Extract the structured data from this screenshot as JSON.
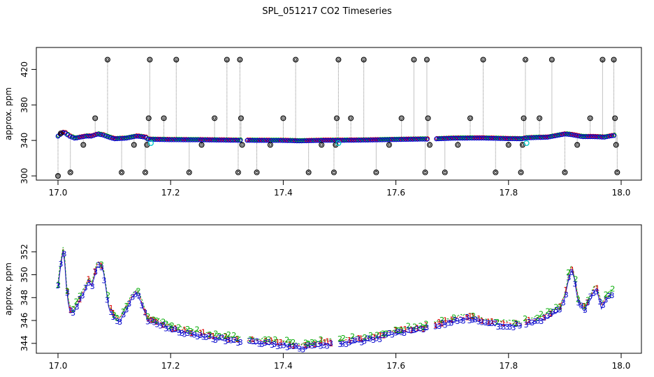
{
  "page_title": "SPL_051217  CO2 Timeseries",
  "colors": {
    "raw": "#000000",
    "flagged": "#00c8c8",
    "series1": "#dd0000",
    "series2": "#00aa00",
    "series3": "#0000cc",
    "connector": "#888888"
  },
  "chart_data": [
    {
      "type": "scatter",
      "title": "SPL_051217  CO2 Timeseries",
      "xlabel": "",
      "ylabel": "approx. ppm",
      "xlim": [
        17.0,
        18.0
      ],
      "ylim": [
        300,
        440
      ],
      "xticks": [
        17.0,
        17.2,
        17.4,
        17.6,
        17.8,
        18.0
      ],
      "xtick_labels": [
        "17.0",
        "17.2",
        "17.4",
        "17.6",
        "17.8",
        "18.0"
      ],
      "yticks": [
        300,
        340,
        380,
        420
      ],
      "ytick_labels": [
        "300",
        "340",
        "380",
        "420"
      ],
      "gaps": [
        [
          17.327,
          17.336
        ],
        [
          17.658,
          17.668
        ]
      ],
      "baseline": {
        "x": [
          17.0,
          17.005,
          17.01,
          17.02,
          17.03,
          17.04,
          17.05,
          17.06,
          17.07,
          17.08,
          17.09,
          17.1,
          17.12,
          17.14,
          17.155,
          17.16,
          17.2,
          17.25,
          17.3,
          17.325,
          17.34,
          17.4,
          17.43,
          17.47,
          17.5,
          17.55,
          17.6,
          17.65,
          17.66,
          17.67,
          17.7,
          17.75,
          17.8,
          17.825,
          17.83,
          17.87,
          17.9,
          17.91,
          17.93,
          17.95,
          17.97,
          17.985
        ],
        "y": [
          348,
          350,
          352,
          348,
          346,
          347,
          348,
          348,
          350,
          349,
          347,
          345.5,
          346,
          348,
          347,
          345,
          344.6,
          344.5,
          344.2,
          344,
          344,
          343.9,
          343.5,
          344,
          344,
          344.3,
          344.8,
          345.2,
          345,
          345.4,
          346,
          346.2,
          345.6,
          345.5,
          346.3,
          347,
          350,
          349.5,
          347.5,
          347.5,
          347,
          348.5
        ]
      },
      "spikes": [
        {
          "x": 17.0,
          "y": 300
        },
        {
          "x": 17.005,
          "y": 348
        },
        {
          "x": 17.022,
          "y": 304
        },
        {
          "x": 17.045,
          "y": 335
        },
        {
          "x": 17.066,
          "y": 365
        },
        {
          "x": 17.088,
          "y": 431
        },
        {
          "x": 17.113,
          "y": 304
        },
        {
          "x": 17.135,
          "y": 335
        },
        {
          "x": 17.155,
          "y": 304
        },
        {
          "x": 17.158,
          "y": 335
        },
        {
          "x": 17.161,
          "y": 365
        },
        {
          "x": 17.163,
          "y": 431
        },
        {
          "x": 17.188,
          "y": 365
        },
        {
          "x": 17.21,
          "y": 431
        },
        {
          "x": 17.233,
          "y": 304
        },
        {
          "x": 17.255,
          "y": 335
        },
        {
          "x": 17.278,
          "y": 365
        },
        {
          "x": 17.3,
          "y": 431
        },
        {
          "x": 17.32,
          "y": 304
        },
        {
          "x": 17.323,
          "y": 431
        },
        {
          "x": 17.325,
          "y": 365
        },
        {
          "x": 17.327,
          "y": 335
        },
        {
          "x": 17.353,
          "y": 304
        },
        {
          "x": 17.377,
          "y": 335
        },
        {
          "x": 17.4,
          "y": 365
        },
        {
          "x": 17.422,
          "y": 431
        },
        {
          "x": 17.445,
          "y": 304
        },
        {
          "x": 17.468,
          "y": 335
        },
        {
          "x": 17.49,
          "y": 304
        },
        {
          "x": 17.493,
          "y": 335
        },
        {
          "x": 17.495,
          "y": 365
        },
        {
          "x": 17.498,
          "y": 431
        },
        {
          "x": 17.52,
          "y": 365
        },
        {
          "x": 17.543,
          "y": 431
        },
        {
          "x": 17.565,
          "y": 304
        },
        {
          "x": 17.588,
          "y": 335
        },
        {
          "x": 17.61,
          "y": 365
        },
        {
          "x": 17.632,
          "y": 431
        },
        {
          "x": 17.652,
          "y": 304
        },
        {
          "x": 17.655,
          "y": 431
        },
        {
          "x": 17.657,
          "y": 365
        },
        {
          "x": 17.66,
          "y": 335
        },
        {
          "x": 17.687,
          "y": 304
        },
        {
          "x": 17.71,
          "y": 335
        },
        {
          "x": 17.732,
          "y": 365
        },
        {
          "x": 17.755,
          "y": 431
        },
        {
          "x": 17.777,
          "y": 304
        },
        {
          "x": 17.8,
          "y": 335
        },
        {
          "x": 17.822,
          "y": 304
        },
        {
          "x": 17.825,
          "y": 335
        },
        {
          "x": 17.827,
          "y": 365
        },
        {
          "x": 17.83,
          "y": 431
        },
        {
          "x": 17.855,
          "y": 365
        },
        {
          "x": 17.877,
          "y": 431
        },
        {
          "x": 17.9,
          "y": 304
        },
        {
          "x": 17.922,
          "y": 335
        },
        {
          "x": 17.945,
          "y": 365
        },
        {
          "x": 17.967,
          "y": 431
        },
        {
          "x": 17.987,
          "y": 431
        },
        {
          "x": 17.989,
          "y": 365
        },
        {
          "x": 17.991,
          "y": 335
        },
        {
          "x": 17.993,
          "y": 304
        }
      ],
      "flagged_points": [
        {
          "x": 17.165,
          "y": 337
        },
        {
          "x": 17.498,
          "y": 337
        },
        {
          "x": 17.832,
          "y": 337
        }
      ]
    },
    {
      "type": "scatter",
      "xlabel": "",
      "ylabel": "approx. ppm",
      "xlim": [
        17.0,
        18.0
      ],
      "ylim": [
        343.5,
        354
      ],
      "xticks": [
        17.0,
        17.2,
        17.4,
        17.6,
        17.8,
        18.0
      ],
      "xtick_labels": [
        "17.0",
        "17.2",
        "17.4",
        "17.6",
        "17.8",
        "18.0"
      ],
      "yticks": [
        344,
        346,
        348,
        350,
        352
      ],
      "ytick_labels": [
        "344",
        "346",
        "348",
        "350",
        "352"
      ],
      "gaps": [
        [
          17.327,
          17.336
        ],
        [
          17.487,
          17.5
        ],
        [
          17.658,
          17.668
        ],
        [
          17.825,
          17.83
        ]
      ],
      "series_symbols": [
        "1",
        "2",
        "3"
      ],
      "baseline": {
        "x": [
          17.0,
          17.005,
          17.01,
          17.015,
          17.02,
          17.025,
          17.03,
          17.04,
          17.05,
          17.055,
          17.06,
          17.07,
          17.08,
          17.085,
          17.09,
          17.1,
          17.11,
          17.12,
          17.13,
          17.14,
          17.145,
          17.16,
          17.18,
          17.2,
          17.25,
          17.3,
          17.33,
          17.4,
          17.43,
          17.47,
          17.5,
          17.55,
          17.6,
          17.65,
          17.66,
          17.67,
          17.7,
          17.73,
          17.76,
          17.8,
          17.825,
          17.83,
          17.86,
          17.89,
          17.9,
          17.91,
          17.915,
          17.925,
          17.935,
          17.945,
          17.955,
          17.965,
          17.975,
          17.985
        ],
        "y": [
          349,
          351,
          352.5,
          349,
          347,
          346.8,
          347,
          348,
          349,
          349.5,
          349,
          351,
          350.5,
          349,
          347.2,
          346.3,
          346,
          347,
          348,
          348.5,
          348,
          346,
          345.8,
          345.3,
          344.8,
          344.4,
          344.2,
          344.0,
          343.7,
          344.0,
          344.1,
          344.4,
          345.0,
          345.3,
          345.4,
          345.6,
          346.0,
          346.3,
          345.8,
          345.7,
          345.6,
          345.8,
          346.2,
          347.0,
          348.0,
          350.5,
          350.2,
          347.5,
          347.0,
          348.0,
          349.0,
          347.2,
          348.0,
          348.5
        ]
      }
    }
  ]
}
